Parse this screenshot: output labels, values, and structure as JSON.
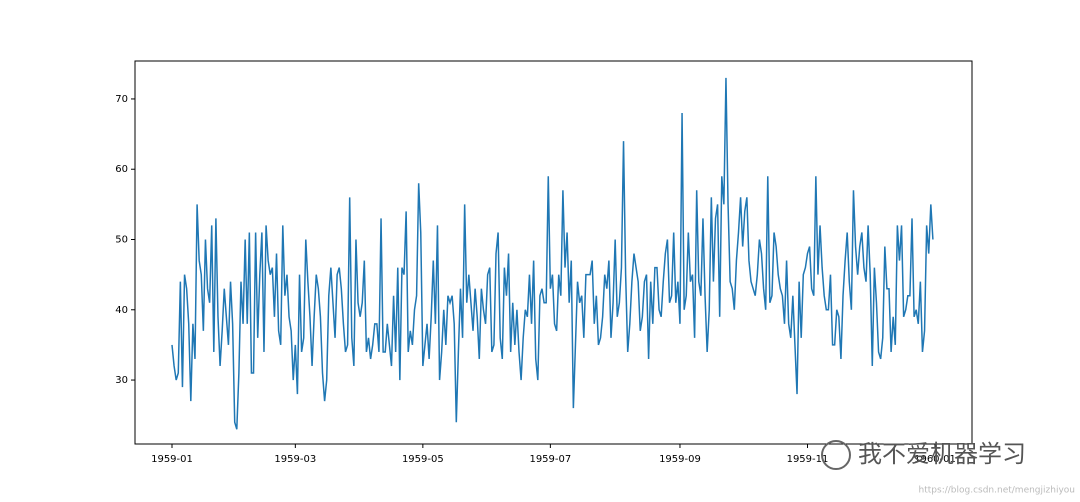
{
  "chart_data": {
    "type": "line",
    "values": [
      35,
      32,
      30,
      31,
      44,
      29,
      45,
      43,
      38,
      27,
      38,
      33,
      55,
      47,
      45,
      37,
      50,
      43,
      41,
      52,
      34,
      53,
      39,
      32,
      37,
      43,
      39,
      35,
      44,
      38,
      24,
      23,
      31,
      44,
      38,
      50,
      38,
      51,
      31,
      31,
      51,
      36,
      45,
      51,
      34,
      52,
      47,
      45,
      46,
      39,
      48,
      37,
      35,
      52,
      42,
      45,
      39,
      37,
      30,
      35,
      28,
      45,
      34,
      36,
      50,
      44,
      39,
      32,
      39,
      45,
      43,
      39,
      31,
      27,
      30,
      42,
      46,
      41,
      36,
      45,
      46,
      43,
      38,
      34,
      35,
      56,
      36,
      32,
      50,
      41,
      39,
      41,
      47,
      34,
      36,
      33,
      35,
      38,
      38,
      34,
      53,
      34,
      34,
      38,
      35,
      32,
      42,
      34,
      46,
      30,
      46,
      45,
      54,
      34,
      37,
      35,
      40,
      42,
      58,
      51,
      32,
      35,
      38,
      33,
      39,
      47,
      38,
      52,
      30,
      34,
      40,
      35,
      42,
      41,
      42,
      38,
      24,
      34,
      43,
      36,
      55,
      41,
      45,
      41,
      37,
      43,
      39,
      33,
      43,
      40,
      38,
      45,
      46,
      34,
      35,
      48,
      51,
      36,
      33,
      46,
      42,
      48,
      34,
      41,
      35,
      40,
      34,
      30,
      36,
      40,
      39,
      45,
      38,
      47,
      33,
      30,
      42,
      43,
      41,
      41,
      59,
      43,
      45,
      38,
      37,
      45,
      42,
      57,
      46,
      51,
      41,
      47,
      26,
      35,
      44,
      41,
      42,
      36,
      45,
      45,
      45,
      47,
      38,
      42,
      35,
      36,
      39,
      45,
      43,
      47,
      36,
      41,
      50,
      39,
      41,
      46,
      64,
      45,
      34,
      38,
      44,
      48,
      46,
      44,
      37,
      39,
      44,
      45,
      33,
      44,
      38,
      46,
      46,
      40,
      39,
      44,
      48,
      50,
      41,
      42,
      51,
      41,
      44,
      38,
      68,
      40,
      42,
      51,
      44,
      45,
      36,
      57,
      44,
      42,
      53,
      42,
      34,
      40,
      56,
      44,
      53,
      55,
      39,
      59,
      55,
      73,
      55,
      44,
      43,
      40,
      47,
      51,
      56,
      49,
      54,
      56,
      47,
      44,
      43,
      42,
      45,
      50,
      48,
      43,
      40,
      59,
      41,
      42,
      51,
      49,
      45,
      43,
      42,
      38,
      47,
      38,
      36,
      42,
      35,
      28,
      44,
      36,
      45,
      46,
      48,
      49,
      43,
      42,
      59,
      45,
      52,
      46,
      42,
      40,
      40,
      45,
      35,
      35,
      40,
      39,
      33,
      42,
      47,
      51,
      44,
      40,
      57,
      49,
      45,
      49,
      51,
      46,
      44,
      52,
      45,
      32,
      46,
      41,
      34,
      33,
      36,
      49,
      43,
      43,
      34,
      39,
      35,
      52,
      47,
      52,
      39,
      40,
      42,
      42,
      53,
      39,
      40,
      38,
      44,
      34,
      37,
      52,
      48,
      55,
      50
    ],
    "color": "#1f77b4",
    "xlim": [
      -17.7,
      382.7
    ],
    "xticks": [
      {
        "value": 0,
        "label": "1959-01"
      },
      {
        "value": 59,
        "label": "1959-03"
      },
      {
        "value": 120,
        "label": "1959-05"
      },
      {
        "value": 181,
        "label": "1959-07"
      },
      {
        "value": 243,
        "label": "1959-09"
      },
      {
        "value": 304,
        "label": "1959-11"
      },
      {
        "value": 365,
        "label": "1960-01"
      }
    ],
    "ylim": [
      20.9,
      75.4
    ],
    "yticks": [
      30,
      40,
      50,
      60,
      70
    ]
  },
  "watermark": {
    "text": "我不爱机器学习",
    "url": "https://blog.csdn.net/mengjizhiyou"
  }
}
